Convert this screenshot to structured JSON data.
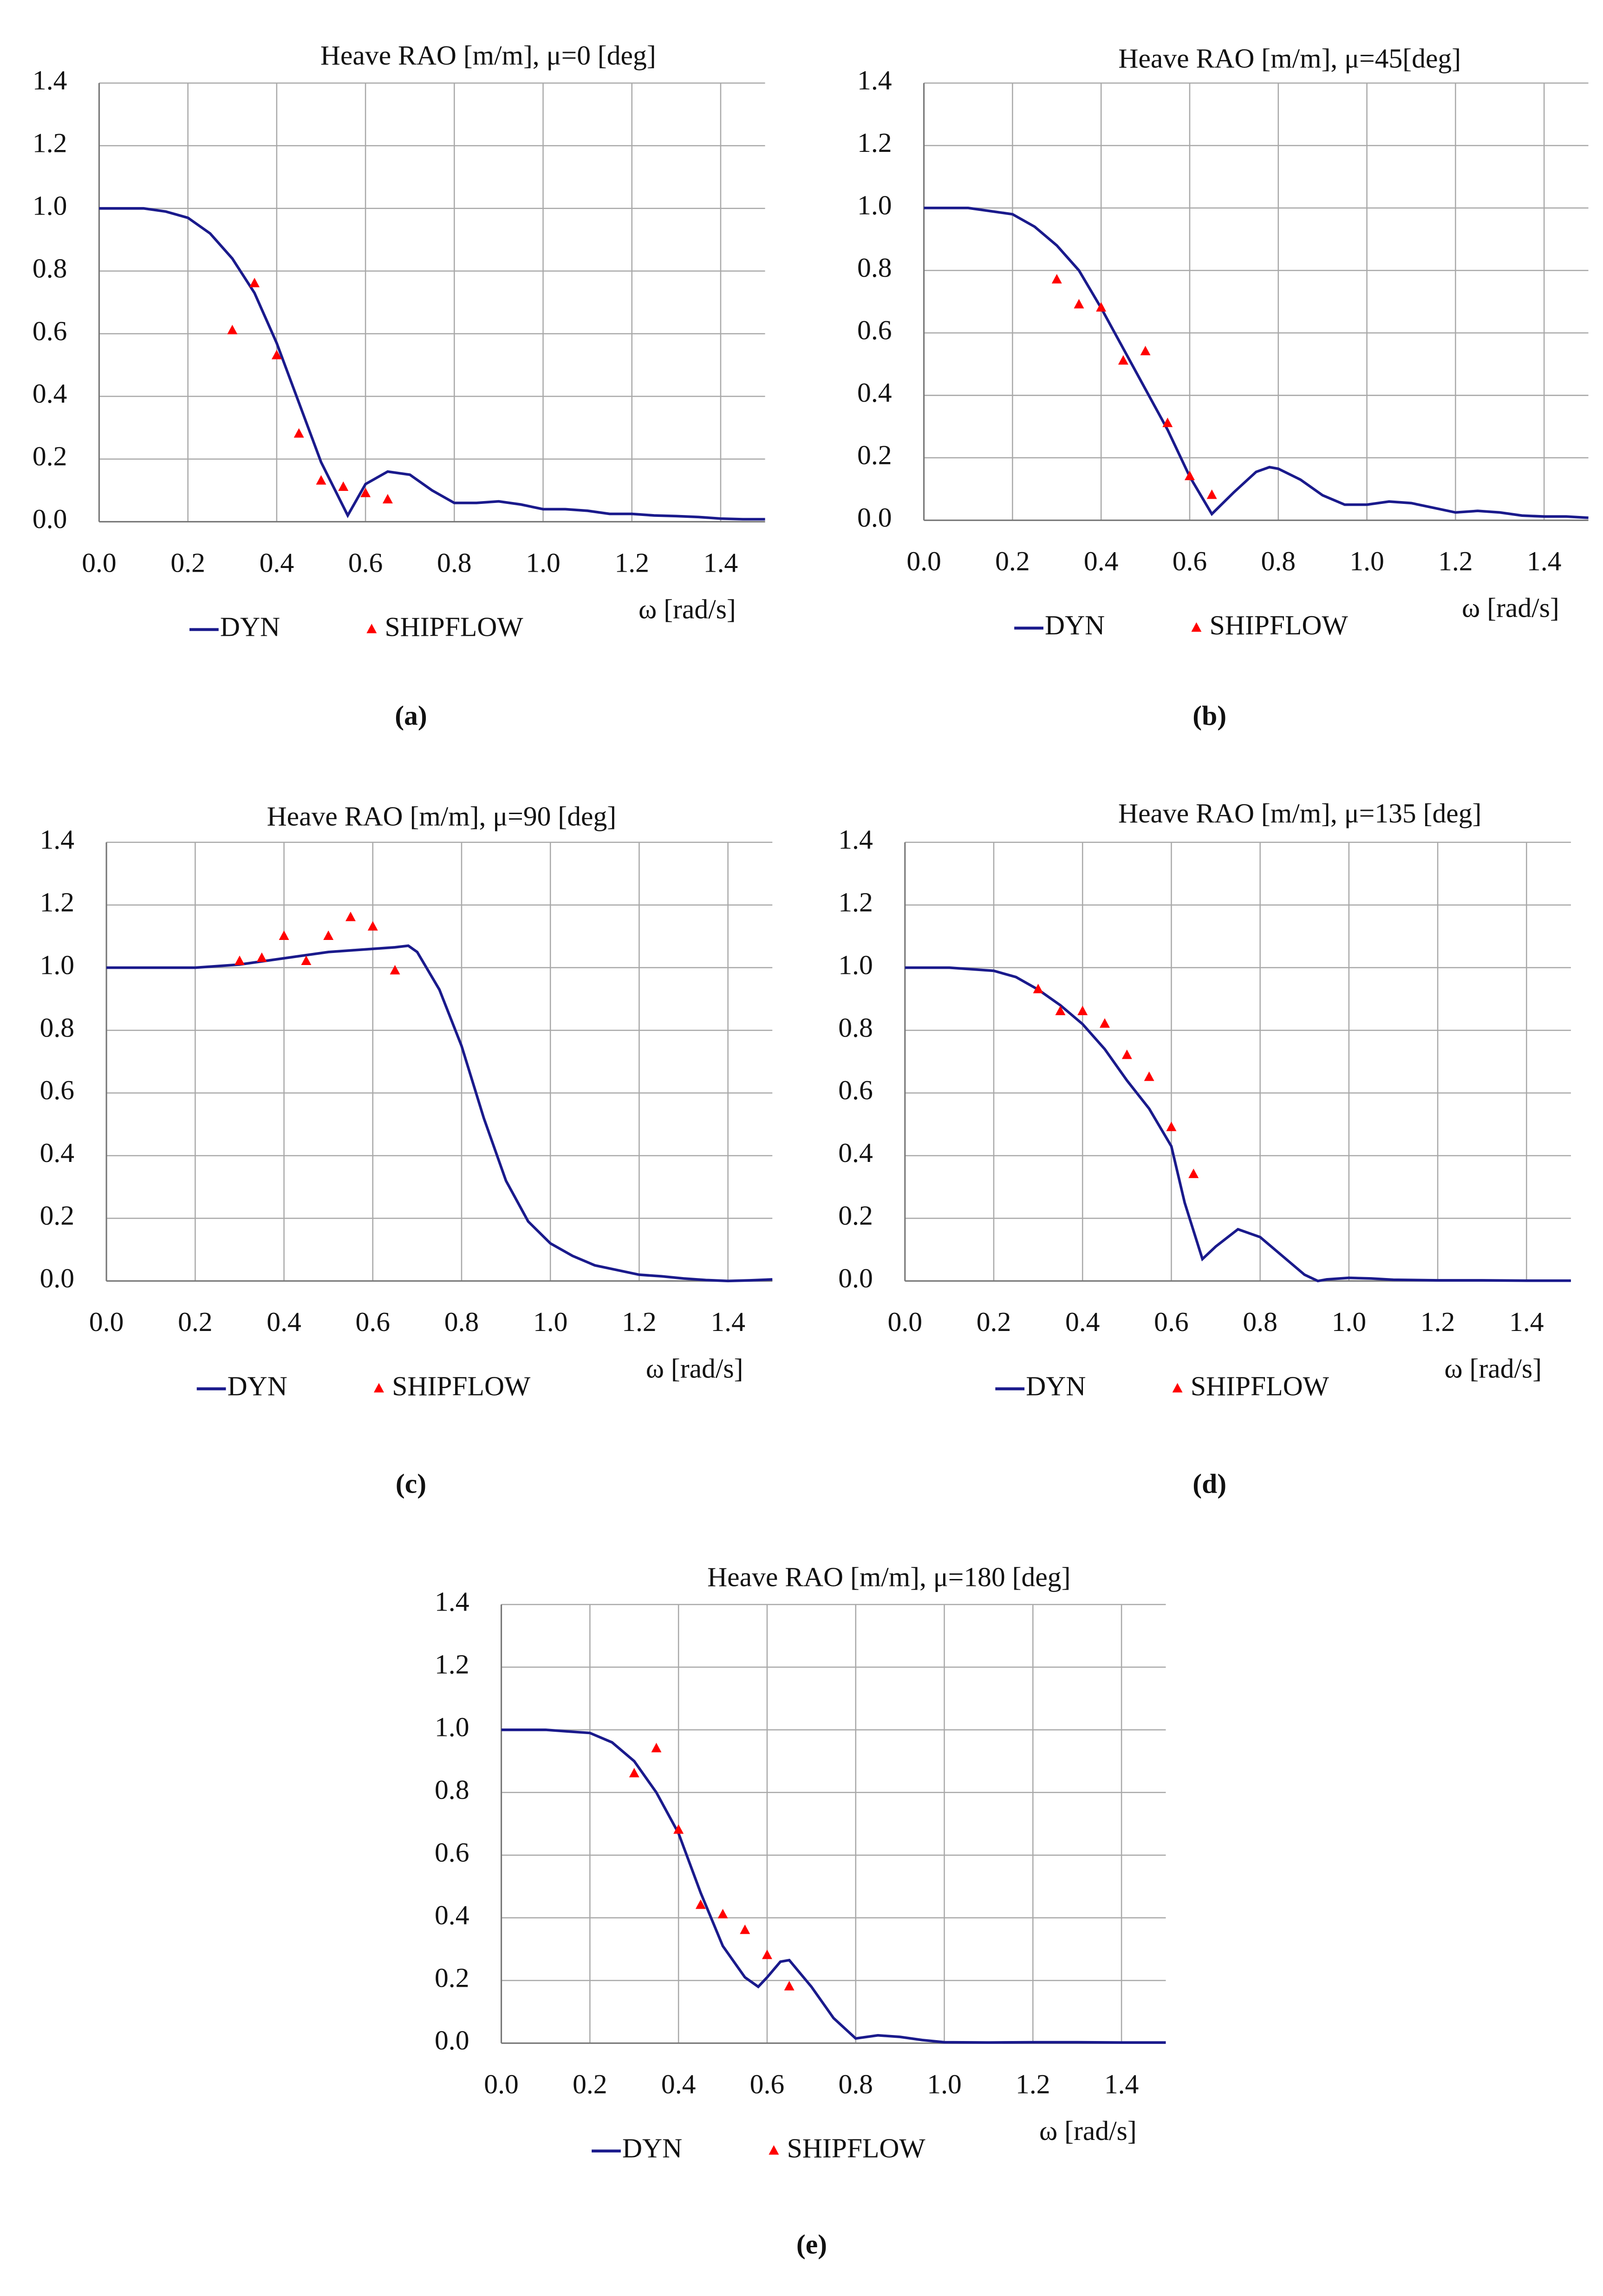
{
  "chart_data": [
    {
      "type": "line",
      "title": "Heave RAO [m/m], μ=0 [deg]",
      "x_label": "ω [rad/s]",
      "panel_label": "(a)",
      "xlim": [
        0,
        1.5
      ],
      "ylim": [
        0,
        1.4
      ],
      "grid": true,
      "xticks": [
        {
          "value": 0,
          "label": "0.0"
        },
        {
          "value": 0.2,
          "label": "0.2"
        },
        {
          "value": 0.4,
          "label": "0.4"
        },
        {
          "value": 0.6,
          "label": "0.6"
        },
        {
          "value": 0.8,
          "label": "0.8"
        },
        {
          "value": 1,
          "label": "1.0"
        },
        {
          "value": 1.2,
          "label": "1.2"
        },
        {
          "value": 1.4,
          "label": "1.4"
        }
      ],
      "yticks": [
        {
          "value": 0,
          "label": "0.0"
        },
        {
          "value": 0.2,
          "label": "0.2"
        },
        {
          "value": 0.4,
          "label": "0.4"
        },
        {
          "value": 0.6,
          "label": "0.6"
        },
        {
          "value": 0.8,
          "label": "0.8"
        },
        {
          "value": 1,
          "label": "1.0"
        },
        {
          "value": 1.2,
          "label": "1.2"
        },
        {
          "value": 1.4,
          "label": "1.4"
        }
      ],
      "series": [
        {
          "name": "DYN",
          "type": "line",
          "color": "#1a1a8c",
          "x": [
            0,
            0.05,
            0.1,
            0.15,
            0.2,
            0.25,
            0.3,
            0.35,
            0.4,
            0.45,
            0.5,
            0.56,
            0.6,
            0.65,
            0.7,
            0.75,
            0.8,
            0.85,
            0.9,
            0.95,
            1.0,
            1.05,
            1.1,
            1.15,
            1.2,
            1.25,
            1.3,
            1.35,
            1.4,
            1.45,
            1.5
          ],
          "values": [
            1.0,
            1.0,
            1.0,
            0.99,
            0.97,
            0.92,
            0.84,
            0.73,
            0.57,
            0.38,
            0.19,
            0.02,
            0.12,
            0.16,
            0.15,
            0.1,
            0.06,
            0.06,
            0.065,
            0.055,
            0.04,
            0.04,
            0.035,
            0.025,
            0.025,
            0.02,
            0.018,
            0.015,
            0.01,
            0.008,
            0.008
          ]
        },
        {
          "name": "SHIPFLOW",
          "type": "scatter",
          "color": "#ff0000",
          "x": [
            0.3,
            0.35,
            0.4,
            0.45,
            0.5,
            0.55,
            0.6,
            0.65
          ],
          "values": [
            0.61,
            0.76,
            0.53,
            0.28,
            0.13,
            0.11,
            0.09,
            0.07
          ]
        }
      ]
    },
    {
      "type": "line",
      "title": "Heave RAO [m/m], μ=45[deg]",
      "x_label": "ω [rad/s]",
      "panel_label": "(b)",
      "xlim": [
        0,
        1.5
      ],
      "ylim": [
        0,
        1.4
      ],
      "grid": true,
      "xticks": [
        {
          "value": 0,
          "label": "0.0"
        },
        {
          "value": 0.2,
          "label": "0.2"
        },
        {
          "value": 0.4,
          "label": "0.4"
        },
        {
          "value": 0.6,
          "label": "0.6"
        },
        {
          "value": 0.8,
          "label": "0.8"
        },
        {
          "value": 1,
          "label": "1.0"
        },
        {
          "value": 1.2,
          "label": "1.2"
        },
        {
          "value": 1.4,
          "label": "1.4"
        }
      ],
      "yticks": [
        {
          "value": 0,
          "label": "0.0"
        },
        {
          "value": 0.2,
          "label": "0.2"
        },
        {
          "value": 0.4,
          "label": "0.4"
        },
        {
          "value": 0.6,
          "label": "0.6"
        },
        {
          "value": 0.8,
          "label": "0.8"
        },
        {
          "value": 1,
          "label": "1.0"
        },
        {
          "value": 1.2,
          "label": "1.2"
        },
        {
          "value": 1.4,
          "label": "1.4"
        }
      ],
      "series": [
        {
          "name": "DYN",
          "type": "line",
          "color": "#1a1a8c",
          "x": [
            0,
            0.1,
            0.15,
            0.2,
            0.25,
            0.3,
            0.35,
            0.4,
            0.45,
            0.5,
            0.55,
            0.6,
            0.65,
            0.7,
            0.75,
            0.78,
            0.8,
            0.85,
            0.9,
            0.95,
            1.0,
            1.05,
            1.1,
            1.15,
            1.2,
            1.25,
            1.3,
            1.35,
            1.4,
            1.45,
            1.5
          ],
          "values": [
            1.0,
            1.0,
            0.99,
            0.98,
            0.94,
            0.88,
            0.8,
            0.68,
            0.55,
            0.42,
            0.29,
            0.14,
            0.02,
            0.09,
            0.155,
            0.17,
            0.165,
            0.13,
            0.08,
            0.05,
            0.05,
            0.06,
            0.055,
            0.04,
            0.025,
            0.03,
            0.025,
            0.015,
            0.012,
            0.012,
            0.008
          ]
        },
        {
          "name": "SHIPFLOW",
          "type": "scatter",
          "color": "#ff0000",
          "x": [
            0.3,
            0.35,
            0.4,
            0.45,
            0.5,
            0.55,
            0.6,
            0.65
          ],
          "values": [
            0.77,
            0.69,
            0.68,
            0.51,
            0.54,
            0.31,
            0.14,
            0.08
          ]
        }
      ]
    },
    {
      "type": "line",
      "title": "Heave RAO [m/m], μ=90 [deg]",
      "x_label": "ω [rad/s]",
      "panel_label": "(c)",
      "xlim": [
        0,
        1.5
      ],
      "ylim": [
        0,
        1.4
      ],
      "grid": true,
      "xticks": [
        {
          "value": 0,
          "label": "0.0"
        },
        {
          "value": 0.2,
          "label": "0.2"
        },
        {
          "value": 0.4,
          "label": "0.4"
        },
        {
          "value": 0.6,
          "label": "0.6"
        },
        {
          "value": 0.8,
          "label": "0.8"
        },
        {
          "value": 1,
          "label": "1.0"
        },
        {
          "value": 1.2,
          "label": "1.2"
        },
        {
          "value": 1.4,
          "label": "1.4"
        }
      ],
      "yticks": [
        {
          "value": 0,
          "label": "0.0"
        },
        {
          "value": 0.2,
          "label": "0.2"
        },
        {
          "value": 0.4,
          "label": "0.4"
        },
        {
          "value": 0.6,
          "label": "0.6"
        },
        {
          "value": 0.8,
          "label": "0.8"
        },
        {
          "value": 1,
          "label": "1.0"
        },
        {
          "value": 1.2,
          "label": "1.2"
        },
        {
          "value": 1.4,
          "label": "1.4"
        }
      ],
      "series": [
        {
          "name": "DYN",
          "type": "line",
          "color": "#1a1a8c",
          "x": [
            0,
            0.1,
            0.2,
            0.25,
            0.3,
            0.35,
            0.4,
            0.45,
            0.5,
            0.55,
            0.6,
            0.65,
            0.68,
            0.7,
            0.75,
            0.8,
            0.85,
            0.9,
            0.95,
            1.0,
            1.05,
            1.1,
            1.15,
            1.2,
            1.25,
            1.3,
            1.35,
            1.4,
            1.45,
            1.5
          ],
          "values": [
            1.0,
            1.0,
            1.0,
            1.005,
            1.01,
            1.02,
            1.03,
            1.04,
            1.05,
            1.055,
            1.06,
            1.065,
            1.07,
            1.05,
            0.93,
            0.75,
            0.52,
            0.32,
            0.19,
            0.12,
            0.08,
            0.05,
            0.035,
            0.02,
            0.015,
            0.008,
            0.003,
            0.0,
            0.002,
            0.005
          ]
        },
        {
          "name": "SHIPFLOW",
          "type": "scatter",
          "color": "#ff0000",
          "x": [
            0.3,
            0.35,
            0.4,
            0.45,
            0.5,
            0.55,
            0.6,
            0.65
          ],
          "values": [
            1.02,
            1.03,
            1.1,
            1.02,
            1.1,
            1.16,
            1.13,
            0.99
          ]
        }
      ]
    },
    {
      "type": "line",
      "title": "Heave RAO [m/m], μ=135 [deg]",
      "x_label": "ω [rad/s]",
      "panel_label": "(d)",
      "xlim": [
        0,
        1.5
      ],
      "ylim": [
        0,
        1.4
      ],
      "grid": true,
      "xticks": [
        {
          "value": 0,
          "label": "0.0"
        },
        {
          "value": 0.2,
          "label": "0.2"
        },
        {
          "value": 0.4,
          "label": "0.4"
        },
        {
          "value": 0.6,
          "label": "0.6"
        },
        {
          "value": 0.8,
          "label": "0.8"
        },
        {
          "value": 1,
          "label": "1.0"
        },
        {
          "value": 1.2,
          "label": "1.2"
        },
        {
          "value": 1.4,
          "label": "1.4"
        }
      ],
      "yticks": [
        {
          "value": 0,
          "label": "0.0"
        },
        {
          "value": 0.2,
          "label": "0.2"
        },
        {
          "value": 0.4,
          "label": "0.4"
        },
        {
          "value": 0.6,
          "label": "0.6"
        },
        {
          "value": 0.8,
          "label": "0.8"
        },
        {
          "value": 1,
          "label": "1.0"
        },
        {
          "value": 1.2,
          "label": "1.2"
        },
        {
          "value": 1.4,
          "label": "1.4"
        }
      ],
      "series": [
        {
          "name": "DYN",
          "type": "line",
          "color": "#1a1a8c",
          "x": [
            0,
            0.1,
            0.15,
            0.2,
            0.25,
            0.3,
            0.35,
            0.4,
            0.45,
            0.5,
            0.55,
            0.6,
            0.63,
            0.67,
            0.7,
            0.75,
            0.8,
            0.85,
            0.9,
            0.93,
            0.95,
            1.0,
            1.05,
            1.1,
            1.2,
            1.3,
            1.4,
            1.5
          ],
          "values": [
            1.0,
            1.0,
            0.995,
            0.99,
            0.97,
            0.93,
            0.88,
            0.82,
            0.74,
            0.64,
            0.55,
            0.43,
            0.25,
            0.07,
            0.11,
            0.165,
            0.14,
            0.08,
            0.02,
            0.0,
            0.005,
            0.01,
            0.008,
            0.004,
            0.002,
            0.002,
            0.001,
            0.001
          ]
        },
        {
          "name": "SHIPFLOW",
          "type": "scatter",
          "color": "#ff0000",
          "x": [
            0.3,
            0.35,
            0.4,
            0.45,
            0.5,
            0.55,
            0.6,
            0.65
          ],
          "values": [
            0.93,
            0.86,
            0.86,
            0.82,
            0.72,
            0.65,
            0.49,
            0.34
          ]
        }
      ]
    },
    {
      "type": "line",
      "title": "Heave RAO [m/m], μ=180 [deg]",
      "x_label": "ω [rad/s]",
      "panel_label": "(e)",
      "xlim": [
        0,
        1.5
      ],
      "ylim": [
        0,
        1.4
      ],
      "grid": true,
      "xticks": [
        {
          "value": 0,
          "label": "0.0"
        },
        {
          "value": 0.2,
          "label": "0.2"
        },
        {
          "value": 0.4,
          "label": "0.4"
        },
        {
          "value": 0.6,
          "label": "0.6"
        },
        {
          "value": 0.8,
          "label": "0.8"
        },
        {
          "value": 1,
          "label": "1.0"
        },
        {
          "value": 1.2,
          "label": "1.2"
        },
        {
          "value": 1.4,
          "label": "1.4"
        }
      ],
      "yticks": [
        {
          "value": 0,
          "label": "0.0"
        },
        {
          "value": 0.2,
          "label": "0.2"
        },
        {
          "value": 0.4,
          "label": "0.4"
        },
        {
          "value": 0.6,
          "label": "0.6"
        },
        {
          "value": 0.8,
          "label": "0.8"
        },
        {
          "value": 1,
          "label": "1.0"
        },
        {
          "value": 1.2,
          "label": "1.2"
        },
        {
          "value": 1.4,
          "label": "1.4"
        }
      ],
      "series": [
        {
          "name": "DYN",
          "type": "line",
          "color": "#1a1a8c",
          "x": [
            0,
            0.1,
            0.15,
            0.2,
            0.25,
            0.3,
            0.35,
            0.4,
            0.45,
            0.5,
            0.55,
            0.58,
            0.6,
            0.63,
            0.65,
            0.7,
            0.75,
            0.8,
            0.85,
            0.9,
            0.95,
            1.0,
            1.1,
            1.2,
            1.3,
            1.4,
            1.5
          ],
          "values": [
            1.0,
            1.0,
            0.995,
            0.99,
            0.96,
            0.9,
            0.8,
            0.67,
            0.48,
            0.31,
            0.21,
            0.18,
            0.21,
            0.26,
            0.265,
            0.18,
            0.08,
            0.015,
            0.025,
            0.02,
            0.01,
            0.003,
            0.002,
            0.003,
            0.003,
            0.002,
            0.002
          ]
        },
        {
          "name": "SHIPFLOW",
          "type": "scatter",
          "color": "#ff0000",
          "x": [
            0.3,
            0.35,
            0.4,
            0.45,
            0.5,
            0.55,
            0.6,
            0.65
          ],
          "values": [
            0.86,
            0.94,
            0.68,
            0.44,
            0.41,
            0.36,
            0.28,
            0.18
          ]
        }
      ]
    }
  ]
}
